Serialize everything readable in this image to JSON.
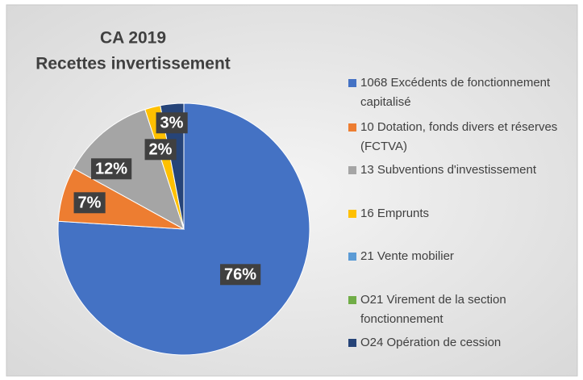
{
  "chart_data": {
    "type": "pie",
    "title": [
      "CA 2019",
      "Recettes invertissement"
    ],
    "categories": [
      "1068 Excédents de fonctionnement capitalisé",
      "10 Dotation, fonds divers et réserves (FCTVA)",
      "13 Subventions d'investissement",
      "16 Emprunts",
      "21 Vente mobilier",
      "O21 Virement de la section fonctionnement",
      "O24 Opération de cession"
    ],
    "values": [
      76,
      7,
      12,
      2,
      0,
      0,
      3
    ],
    "value_labels": [
      "76%",
      "7%",
      "12%",
      "2%",
      null,
      null,
      "3%"
    ],
    "colors": [
      "#4472c4",
      "#ed7d31",
      "#a5a5a5",
      "#ffc000",
      "#5b9bd5",
      "#70ad47",
      "#264478"
    ],
    "legend": "right"
  }
}
